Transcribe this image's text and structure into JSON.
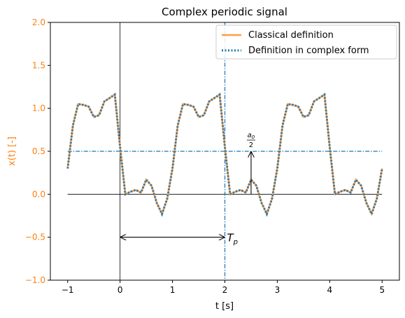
{
  "chart_data": {
    "type": "line",
    "title": "Complex periodic signal",
    "x_label": "t [s]",
    "y_label": "x(t) [-]",
    "y_label_color": "#ff7f0e",
    "xlim": [
      -1.33,
      5.33
    ],
    "ylim": [
      -1.0,
      2.0
    ],
    "xticks": [
      {
        "value": -1,
        "label": "−1"
      },
      0,
      1,
      2,
      3,
      4,
      5
    ],
    "yticks": [
      {
        "value": -1.0,
        "label": "−1.0"
      },
      {
        "value": -0.5,
        "label": "−0.5"
      },
      {
        "value": 0.0,
        "label": "0.0"
      },
      {
        "value": 0.5,
        "label": "0.5"
      },
      {
        "value": 1.0,
        "label": "1.0"
      },
      {
        "value": 1.5,
        "label": "1.5"
      },
      {
        "value": 2.0,
        "label": "2.0"
      }
    ],
    "legend": "upper right",
    "x": [
      -1.0,
      -0.9,
      -0.8,
      -0.7,
      -0.6,
      -0.5,
      -0.4,
      -0.3,
      -0.2,
      -0.1,
      0.0,
      0.1,
      0.2,
      0.3,
      0.4,
      0.5,
      0.6,
      0.7,
      0.8,
      0.9,
      1.0,
      1.1,
      1.2,
      1.3,
      1.4,
      1.5,
      1.6,
      1.7,
      1.8,
      1.9,
      2.0,
      2.1,
      2.2,
      2.3,
      2.4,
      2.5,
      2.6,
      2.7,
      2.8,
      2.9,
      3.0,
      3.1,
      3.2,
      3.3,
      3.4,
      3.5,
      3.6,
      3.7,
      3.8,
      3.9,
      4.0,
      4.1,
      4.2,
      4.3,
      4.4,
      4.5,
      4.6,
      4.7,
      4.8,
      4.9,
      5.0
    ],
    "series": [
      {
        "name": "Classical definition",
        "color": "#ff9f40",
        "style": "solid",
        "values": [
          0.3,
          0.8,
          1.05,
          1.04,
          1.02,
          0.9,
          0.92,
          1.08,
          1.12,
          1.16,
          0.55,
          0.0,
          0.03,
          0.05,
          0.02,
          0.17,
          0.1,
          -0.1,
          -0.23,
          -0.05,
          0.3,
          0.8,
          1.05,
          1.04,
          1.02,
          0.9,
          0.92,
          1.08,
          1.12,
          1.16,
          0.55,
          0.0,
          0.03,
          0.05,
          0.02,
          0.17,
          0.1,
          -0.1,
          -0.23,
          -0.05,
          0.3,
          0.8,
          1.05,
          1.04,
          1.02,
          0.9,
          0.92,
          1.08,
          1.12,
          1.16,
          0.55,
          0.0,
          0.03,
          0.05,
          0.02,
          0.17,
          0.1,
          -0.1,
          -0.23,
          -0.05,
          0.3
        ]
      },
      {
        "name": "Definition in complex form",
        "color": "#1f77b4",
        "style": "dotted",
        "values": [
          0.3,
          0.8,
          1.05,
          1.04,
          1.02,
          0.9,
          0.92,
          1.08,
          1.12,
          1.16,
          0.55,
          0.0,
          0.03,
          0.05,
          0.02,
          0.17,
          0.1,
          -0.1,
          -0.23,
          -0.05,
          0.3,
          0.8,
          1.05,
          1.04,
          1.02,
          0.9,
          0.92,
          1.08,
          1.12,
          1.16,
          0.55,
          0.0,
          0.03,
          0.05,
          0.02,
          0.17,
          0.1,
          -0.1,
          -0.23,
          -0.05,
          0.3,
          0.8,
          1.05,
          1.04,
          1.02,
          0.9,
          0.92,
          1.08,
          1.12,
          1.16,
          0.55,
          0.0,
          0.03,
          0.05,
          0.02,
          0.17,
          0.1,
          -0.1,
          -0.23,
          -0.05,
          0.3
        ]
      }
    ],
    "reference_lines": [
      {
        "axis": "y",
        "value": 0,
        "from": -1,
        "to": 5,
        "color": "#000000",
        "style": "solid"
      },
      {
        "axis": "x",
        "value": 0,
        "color": "#000000",
        "style": "solid"
      },
      {
        "axis": "y",
        "value": 0.5,
        "from": -1,
        "to": 5,
        "color": "#1f77b4",
        "style": "dashdot"
      },
      {
        "axis": "x",
        "value": 2,
        "color": "#1f77b4",
        "style": "dashdot"
      }
    ],
    "arrows": [
      {
        "x": [
          0,
          2
        ],
        "y": [
          -0.5,
          -0.5
        ],
        "heads": "both",
        "label": "T",
        "label_subscript": "p"
      },
      {
        "x": [
          2.5,
          2.5
        ],
        "y": [
          0,
          0.5
        ],
        "heads": "end",
        "label_numerator": "a",
        "label_numerator_subscript": "0",
        "label_denominator": "2"
      }
    ]
  }
}
